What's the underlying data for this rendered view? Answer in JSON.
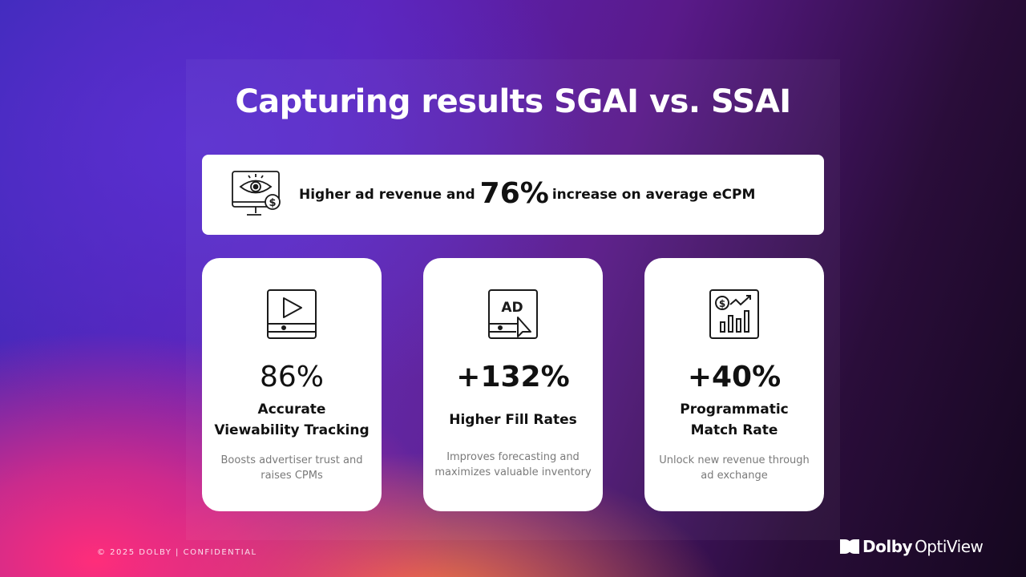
{
  "title": "Capturing results SGAI vs. SSAI",
  "banner": {
    "icon": "monitor-eye-dollar-icon",
    "text_before": "Higher ad revenue and",
    "highlight": "76%",
    "text_after": "increase on average eCPM"
  },
  "cards": [
    {
      "icon": "video-player-icon",
      "value": "86%",
      "label_line1": "Accurate",
      "label_line2": "Viewability Tracking",
      "desc_line1": "Boosts advertiser trust and",
      "desc_line2": "raises CPMs"
    },
    {
      "icon": "ad-click-icon",
      "value": "+132%",
      "label_line1": "Higher Fill Rates",
      "desc_line1": "Improves forecasting and",
      "desc_line2": "maximizes valuable inventory"
    },
    {
      "icon": "dollar-chart-growth-icon",
      "value": "+40%",
      "label_line1": "Programmatic",
      "label_line2": "Match Rate",
      "desc_line1": "Unlock new revenue through",
      "desc_line2": "ad exchange"
    }
  ],
  "footer": {
    "copyright": "© 2025 DOLBY | CONFIDENTIAL"
  },
  "logo": {
    "brand": "Dolby",
    "product": "OptiView"
  },
  "colors": {
    "card_bg": "#ffffff",
    "text_dark": "#111111",
    "text_muted": "#7a7a7a"
  }
}
